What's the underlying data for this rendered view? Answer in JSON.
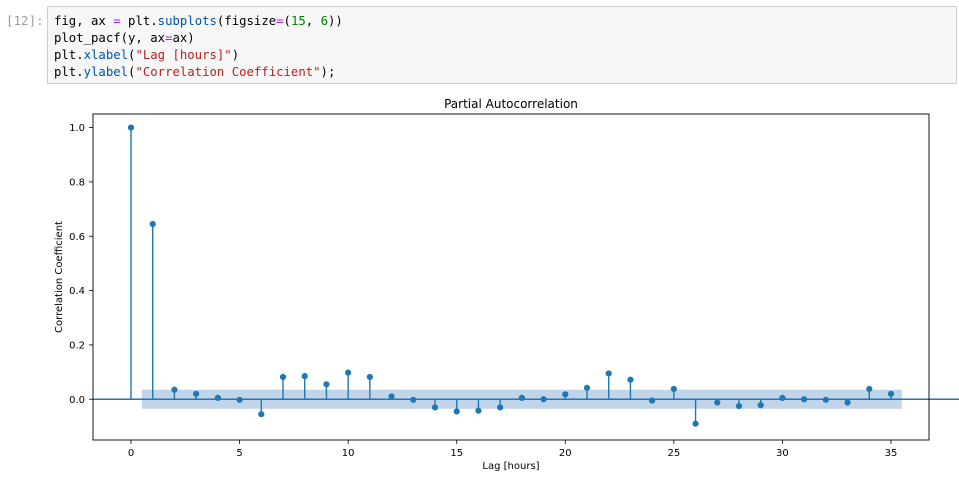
{
  "cell": {
    "prompt": "[12]:",
    "code": {
      "line1": {
        "a": "fig, ax ",
        "b": "=",
        "c": " plt.",
        "d": "subplots",
        "e": "(figsize",
        "f": "=",
        "g": "(",
        "h": "15",
        "i": ", ",
        "j": "6",
        "k": "))"
      },
      "line2": {
        "a": "plot_pacf(y, ax",
        "b": "=",
        "c": "ax)"
      },
      "line3": {
        "a": "plt.",
        "b": "xlabel",
        "c": "(",
        "d": "\"Lag [hours]\"",
        "e": ")"
      },
      "line4": {
        "a": "plt.",
        "b": "ylabel",
        "c": "(",
        "d": "\"Correlation Coefficient\"",
        "e": ");"
      }
    }
  },
  "colors": {
    "series": "#1f77b4",
    "band": "#b5cde6"
  },
  "chart_data": {
    "type": "stem",
    "title": "Partial Autocorrelation",
    "xlabel": "Lag [hours]",
    "ylabel": "Correlation Coefficient",
    "xlim": [
      -1.75,
      36.75
    ],
    "ylim": [
      -0.15,
      1.05
    ],
    "xticks": [
      0,
      5,
      10,
      15,
      20,
      25,
      30,
      35
    ],
    "yticks": [
      0.0,
      0.2,
      0.4,
      0.6,
      0.8,
      1.0
    ],
    "ytick_labels": [
      "0.0",
      "0.2",
      "0.4",
      "0.6",
      "0.8",
      "1.0"
    ],
    "confidence_band": [
      -0.035,
      0.035
    ],
    "band_x": [
      0.5,
      35.5
    ],
    "lags": [
      0,
      1,
      2,
      3,
      4,
      5,
      6,
      7,
      8,
      9,
      10,
      11,
      12,
      13,
      14,
      15,
      16,
      17,
      18,
      19,
      20,
      21,
      22,
      23,
      24,
      25,
      26,
      27,
      28,
      29,
      30,
      31,
      32,
      33,
      34,
      35
    ],
    "values": [
      1.0,
      0.645,
      0.035,
      0.02,
      0.005,
      -0.002,
      -0.055,
      0.082,
      0.085,
      0.055,
      0.098,
      0.082,
      0.01,
      -0.002,
      -0.03,
      -0.045,
      -0.042,
      -0.03,
      0.005,
      0.0,
      0.018,
      0.042,
      0.095,
      0.072,
      -0.005,
      0.038,
      -0.09,
      -0.012,
      -0.025,
      -0.022,
      0.005,
      0.0,
      -0.002,
      -0.012,
      0.038,
      0.02
    ]
  }
}
